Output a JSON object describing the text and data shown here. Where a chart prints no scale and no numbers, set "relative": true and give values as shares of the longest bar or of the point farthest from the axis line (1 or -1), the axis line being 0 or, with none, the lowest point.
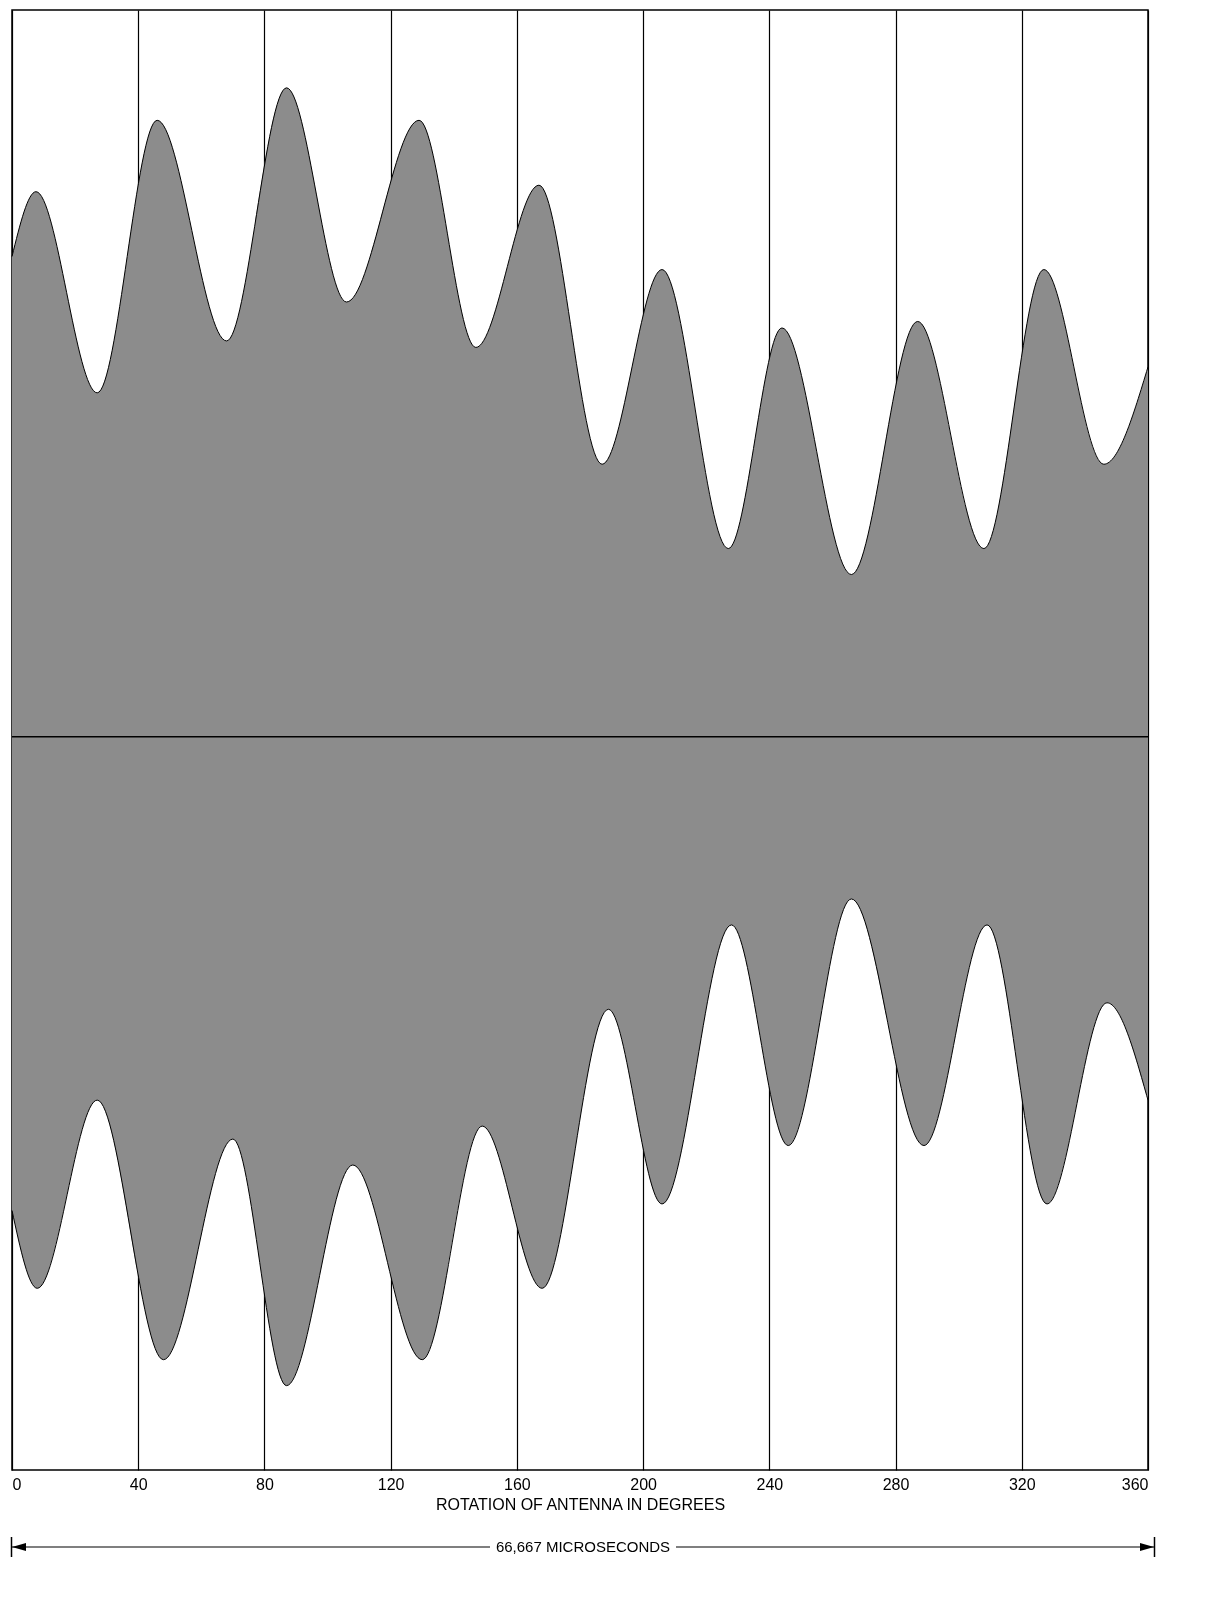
{
  "chart_data": {
    "type": "area",
    "relative": true,
    "xlabel": "ROTATION OF ANTENNA IN DEGREES",
    "xlim": [
      0,
      360
    ],
    "xticks": [
      0,
      40,
      80,
      120,
      160,
      200,
      240,
      280,
      320,
      360
    ],
    "grid": "x",
    "series": [
      {
        "color": "#8c8c8c",
        "x": [
          0,
          7.6,
          27,
          46,
          68,
          87,
          106,
          129,
          147,
          167,
          187,
          206,
          227,
          244,
          266,
          287,
          308,
          327,
          346,
          360
        ],
        "values": [
          0.74,
          0.84,
          0.53,
          0.95,
          0.61,
          1.0,
          0.67,
          0.95,
          0.6,
          0.85,
          0.42,
          0.72,
          0.29,
          0.63,
          0.25,
          0.64,
          0.29,
          0.72,
          0.42,
          0.57
        ]
      },
      {
        "color": "#8c8c8c",
        "x": [
          0,
          8,
          27,
          48,
          70,
          87,
          108,
          130,
          149,
          168,
          189,
          206,
          228,
          246,
          266,
          289,
          309,
          328,
          347,
          360
        ],
        "values": [
          -0.73,
          -0.85,
          -0.56,
          -0.96,
          -0.62,
          -1.0,
          -0.66,
          -0.96,
          -0.6,
          -0.85,
          -0.42,
          -0.72,
          -0.29,
          -0.63,
          -0.25,
          -0.63,
          -0.29,
          -0.72,
          -0.41,
          -0.56
        ]
      }
    ],
    "ref_lines": [
      {
        "axis": "y",
        "value": 0,
        "color": "#000000"
      }
    ],
    "annotations": [
      "66,667 MICROSECONDS"
    ]
  }
}
